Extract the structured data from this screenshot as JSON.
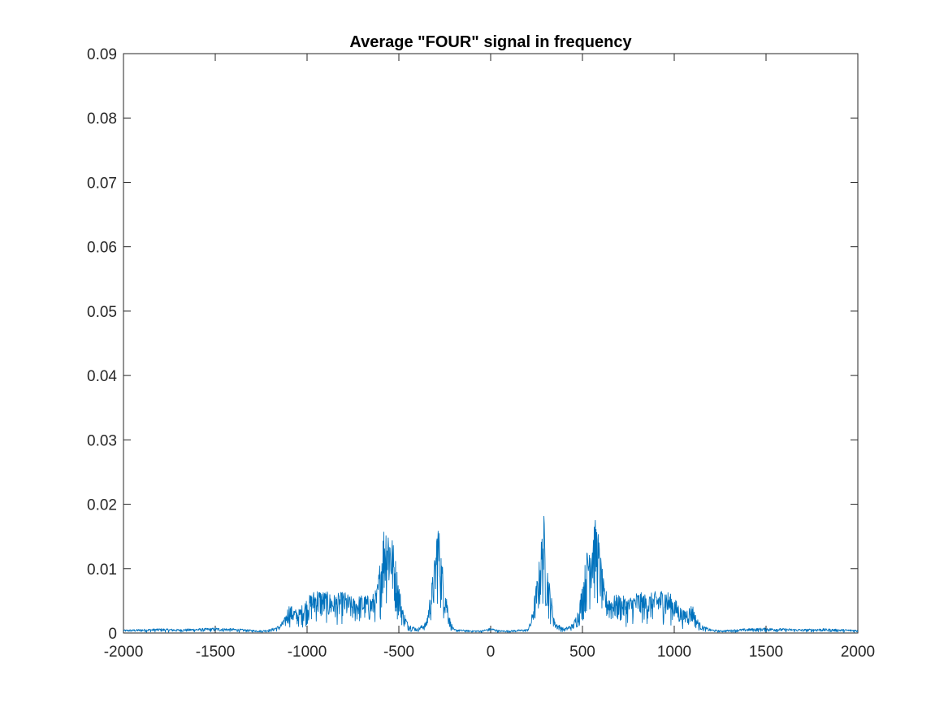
{
  "chart_data": {
    "type": "line",
    "title": "Average \"FOUR\" signal in frequency",
    "xlabel": "",
    "ylabel": "",
    "xlim": [
      -2000,
      2000
    ],
    "ylim": [
      0,
      0.09
    ],
    "x_ticks": [
      -2000,
      -1500,
      -1000,
      -500,
      0,
      500,
      1000,
      1500,
      2000
    ],
    "x_tick_labels": [
      "-2000",
      "-1500",
      "-1000",
      "-500",
      "0",
      "500",
      "1000",
      "1500",
      "2000"
    ],
    "y_ticks": [
      0,
      0.01,
      0.02,
      0.03,
      0.04,
      0.05,
      0.06,
      0.07,
      0.08,
      0.09
    ],
    "y_tick_labels": [
      "0",
      "0.01",
      "0.02",
      "0.03",
      "0.04",
      "0.05",
      "0.06",
      "0.07",
      "0.08",
      "0.09"
    ],
    "grid": false,
    "box": true,
    "series": [
      {
        "color": "#0072BD",
        "x": [
          -2000,
          -1900,
          -1800,
          -1700,
          -1600,
          -1500,
          -1400,
          -1300,
          -1250,
          -1200,
          -1150,
          -1120,
          -1100,
          -1050,
          -1000,
          -950,
          -900,
          -850,
          -800,
          -750,
          -700,
          -650,
          -620,
          -600,
          -580,
          -560,
          -540,
          -520,
          -500,
          -480,
          -450,
          -400,
          -350,
          -320,
          -300,
          -290,
          -280,
          -260,
          -240,
          -220,
          -200,
          -150,
          -100,
          -50,
          0,
          50,
          100,
          150,
          200,
          220,
          240,
          260,
          280,
          290,
          300,
          320,
          350,
          400,
          450,
          480,
          500,
          520,
          540,
          560,
          580,
          600,
          620,
          650,
          700,
          750,
          800,
          850,
          900,
          950,
          1000,
          1050,
          1100,
          1120,
          1150,
          1200,
          1250,
          1300,
          1400,
          1500,
          1600,
          1700,
          1800,
          1900,
          2000
        ],
        "y": [
          0.0005,
          0.0006,
          0.0007,
          0.0006,
          0.0007,
          0.0008,
          0.0007,
          0.0005,
          0.0004,
          0.0006,
          0.0012,
          0.0025,
          0.0045,
          0.0035,
          0.0055,
          0.007,
          0.0065,
          0.006,
          0.0065,
          0.0055,
          0.006,
          0.0058,
          0.007,
          0.012,
          0.0175,
          0.0178,
          0.016,
          0.012,
          0.008,
          0.004,
          0.0015,
          0.0007,
          0.0018,
          0.008,
          0.013,
          0.0185,
          0.016,
          0.01,
          0.006,
          0.002,
          0.0006,
          0.0005,
          0.0004,
          0.0004,
          0.0008,
          0.0004,
          0.0004,
          0.0005,
          0.0006,
          0.002,
          0.006,
          0.01,
          0.016,
          0.0185,
          0.013,
          0.008,
          0.0018,
          0.0007,
          0.0015,
          0.004,
          0.008,
          0.012,
          0.016,
          0.0178,
          0.0175,
          0.012,
          0.007,
          0.0058,
          0.006,
          0.0055,
          0.0065,
          0.006,
          0.0065,
          0.007,
          0.0055,
          0.0035,
          0.0045,
          0.0025,
          0.0012,
          0.0006,
          0.0004,
          0.0005,
          0.0007,
          0.0008,
          0.0007,
          0.0006,
          0.0007,
          0.0006,
          0.0005
        ]
      }
    ]
  }
}
